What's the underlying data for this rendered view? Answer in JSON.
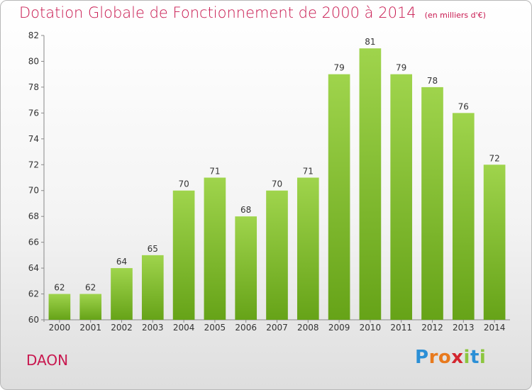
{
  "chart_data": {
    "type": "bar",
    "title": "Dotation Globale de Fonctionnement de 2000 à 2014",
    "unit_note": "(en milliers d'€)",
    "categories": [
      "2000",
      "2001",
      "2002",
      "2003",
      "2004",
      "2005",
      "2006",
      "2007",
      "2008",
      "2009",
      "2010",
      "2011",
      "2012",
      "2013",
      "2014"
    ],
    "values": [
      62,
      62,
      64,
      65,
      70,
      71,
      68,
      70,
      71,
      79,
      81,
      79,
      78,
      76,
      72
    ],
    "xlabel": "",
    "ylabel": "",
    "ylim": [
      60,
      82
    ],
    "yticks": [
      60,
      62,
      64,
      66,
      68,
      70,
      72,
      74,
      76,
      78,
      80,
      82
    ],
    "grid": false,
    "bar_color": "#8cc63f"
  },
  "place_name": "DAON",
  "logo": {
    "text": "Proxiti",
    "letters": [
      {
        "ch": "P",
        "color": "#2b8fd6"
      },
      {
        "ch": "r",
        "color": "#e87a1e"
      },
      {
        "ch": "o",
        "color": "#e87a1e"
      },
      {
        "ch": "x",
        "color": "#d3262f"
      },
      {
        "ch": "i",
        "color": "#8cc63f"
      },
      {
        "ch": "t",
        "color": "#2b8fd6"
      },
      {
        "ch": "i",
        "color": "#8cc63f"
      }
    ]
  }
}
